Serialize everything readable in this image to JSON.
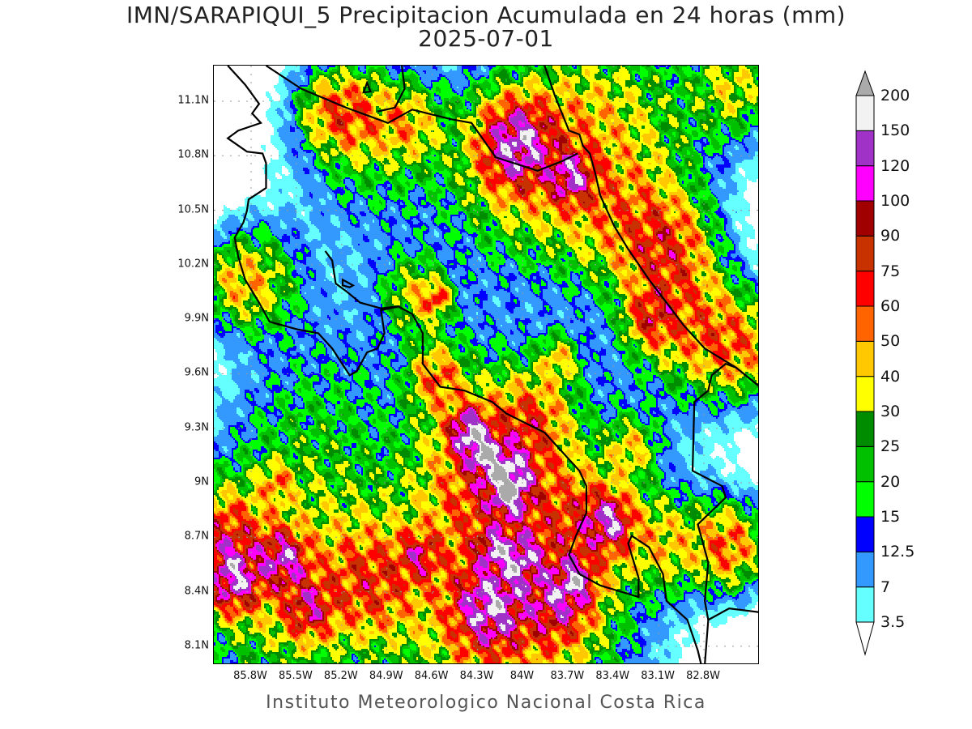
{
  "title": "IMN/SARAPIQUI_5 Precipitacion Acumulada en 24 horas (mm)",
  "date": "2025-07-01",
  "footer": "Instituto Meteorologico Nacional Costa Rica",
  "map": {
    "lon_range": [
      -86.047,
      -82.43
    ],
    "lat_range": [
      7.997,
      11.296
    ],
    "x_ticks": [
      {
        "value": -85.8,
        "label": "85.8W"
      },
      {
        "value": -85.5,
        "label": "85.5W"
      },
      {
        "value": -85.2,
        "label": "85.2W"
      },
      {
        "value": -84.9,
        "label": "84.9W"
      },
      {
        "value": -84.6,
        "label": "84.6W"
      },
      {
        "value": -84.3,
        "label": "84.3W"
      },
      {
        "value": -84.0,
        "label": "84W"
      },
      {
        "value": -83.7,
        "label": "83.7W"
      },
      {
        "value": -83.4,
        "label": "83.4W"
      },
      {
        "value": -83.1,
        "label": "83.1W"
      },
      {
        "value": -82.8,
        "label": "82.8W"
      }
    ],
    "y_ticks": [
      {
        "value": 8.1,
        "label": "8.1N"
      },
      {
        "value": 8.4,
        "label": "8.4N"
      },
      {
        "value": 8.7,
        "label": "8.7N"
      },
      {
        "value": 9.0,
        "label": "9N"
      },
      {
        "value": 9.3,
        "label": "9.3N"
      },
      {
        "value": 9.6,
        "label": "9.6N"
      },
      {
        "value": 9.9,
        "label": "9.9N"
      },
      {
        "value": 10.2,
        "label": "10.2N"
      },
      {
        "value": 10.5,
        "label": "10.5N"
      },
      {
        "value": 10.8,
        "label": "10.8N"
      },
      {
        "value": 11.1,
        "label": "11.1N"
      }
    ],
    "grid": true,
    "units": "mm",
    "precip_cells": [
      [
        -84.04,
        10.865,
        135,
        0.14
      ],
      [
        -83.68,
        10.68,
        110,
        0.09
      ],
      [
        -83.97,
        10.81,
        70,
        0.32
      ],
      [
        -83.05,
        10.29,
        75,
        0.2
      ],
      [
        -83.39,
        10.5,
        50,
        0.28
      ],
      [
        -82.86,
        9.87,
        60,
        0.23
      ],
      [
        -82.54,
        9.74,
        55,
        0.18
      ],
      [
        -83.16,
        9.91,
        65,
        0.11
      ],
      [
        -85.12,
        11.02,
        45,
        0.16
      ],
      [
        -84.76,
        10.98,
        40,
        0.15
      ],
      [
        -85.29,
        11.06,
        40,
        0.14
      ],
      [
        -85.01,
        10.875,
        25,
        0.35
      ],
      [
        -82.58,
        11.19,
        40,
        0.18
      ],
      [
        -83.05,
        11.02,
        25,
        0.35
      ],
      [
        -83.51,
        11.13,
        25,
        0.25
      ],
      [
        -85.75,
        10.12,
        40,
        0.2
      ],
      [
        -85.93,
        10.1,
        30,
        0.15
      ],
      [
        -84.71,
        10.03,
        40,
        0.14
      ],
      [
        -84.57,
        10.01,
        60,
        0.06
      ],
      [
        -84.36,
        9.28,
        165,
        0.08
      ],
      [
        -84.25,
        9.15,
        150,
        0.07
      ],
      [
        -84.09,
        9.05,
        130,
        0.09
      ],
      [
        -84.09,
        8.94,
        125,
        0.08
      ],
      [
        -84.2,
        9.09,
        70,
        0.3
      ],
      [
        -84.57,
        9.58,
        60,
        0.12
      ],
      [
        -83.92,
        9.36,
        45,
        0.16
      ],
      [
        -84.22,
        8.31,
        130,
        0.14
      ],
      [
        -84.02,
        8.58,
        115,
        0.09
      ],
      [
        -84.2,
        8.64,
        110,
        0.06
      ],
      [
        -84.09,
        8.35,
        80,
        0.5
      ],
      [
        -83.76,
        8.35,
        90,
        0.14
      ],
      [
        -83.65,
        8.46,
        100,
        0.07
      ],
      [
        -83.42,
        8.79,
        110,
        0.09
      ],
      [
        -83.56,
        8.77,
        60,
        0.2
      ],
      [
        -85.91,
        8.46,
        120,
        0.11
      ],
      [
        -85.98,
        8.67,
        80,
        0.18
      ],
      [
        -85.585,
        8.58,
        120,
        0.1
      ],
      [
        -85.42,
        8.31,
        85,
        0.11
      ],
      [
        -85.585,
        8.46,
        50,
        0.46
      ],
      [
        -85.01,
        8.46,
        60,
        0.2
      ],
      [
        -84.69,
        8.6,
        70,
        0.09
      ],
      [
        -82.63,
        8.65,
        75,
        0.16
      ],
      [
        -83.05,
        8.67,
        45,
        0.18
      ],
      [
        -83.28,
        9.19,
        40,
        0.11
      ],
      [
        -84.43,
        9.82,
        12,
        0.58
      ],
      [
        -83.28,
        9.4,
        10,
        0.45
      ],
      [
        -85.35,
        9.51,
        12,
        0.35
      ],
      [
        -85.6,
        9.2,
        8,
        0.35
      ],
      [
        -85.1,
        9.0,
        6,
        0.28
      ],
      [
        -85.63,
        9.0,
        40,
        0.07
      ],
      [
        -83.76,
        9.68,
        40,
        0.09
      ]
    ]
  },
  "colorbar": {
    "levels": [
      "3.5",
      "7",
      "12.5",
      "15",
      "20",
      "25",
      "30",
      "40",
      "50",
      "60",
      "75",
      "90",
      "100",
      "120",
      "150",
      "200"
    ],
    "colors": [
      "#ffffff",
      "#66ffff",
      "#3399ff",
      "#0000ff",
      "#00ff00",
      "#00c000",
      "#008c00",
      "#ffff00",
      "#ffc800",
      "#ff6400",
      "#ff0000",
      "#c83200",
      "#a00000",
      "#ff00ff",
      "#a032c8",
      "#f2f2f2",
      "#aaaaaa"
    ]
  }
}
